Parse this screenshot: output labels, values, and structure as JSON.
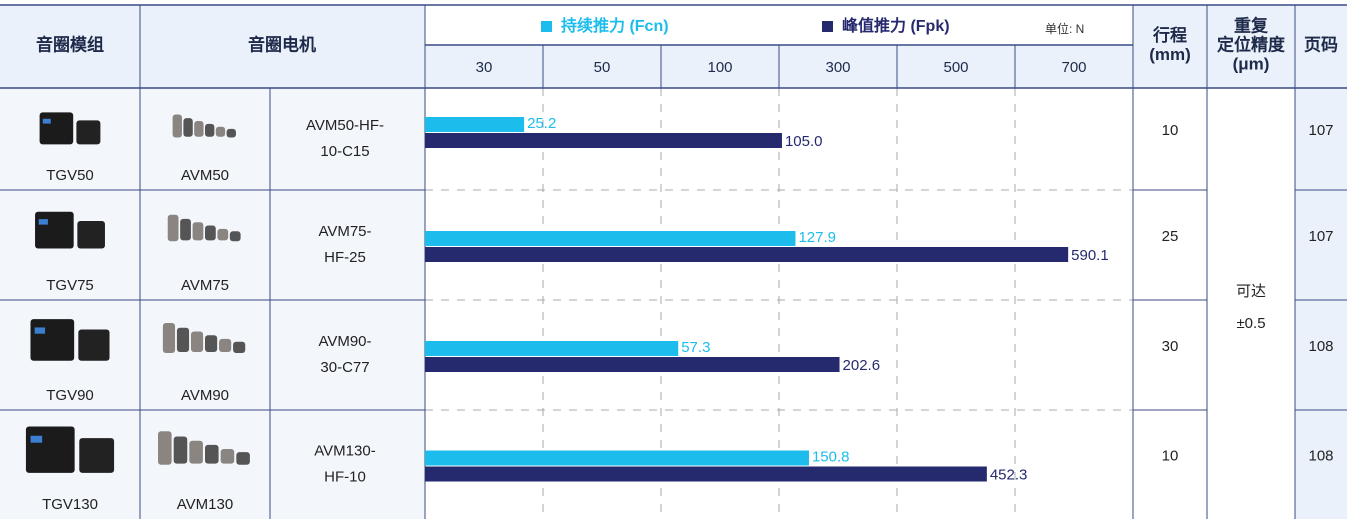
{
  "table": {
    "columns": {
      "module": "音圈模组",
      "motor": "音圈电机",
      "stroke": [
        "行程",
        "(mm)"
      ],
      "precision": [
        "重复",
        "定位精度",
        "(μm)"
      ],
      "page": "页码"
    },
    "rows": [
      {
        "module": "TGV50",
        "motor": "AVM50",
        "model": [
          "AVM50-HF-",
          "10-C15"
        ],
        "stroke": "10",
        "page": "107"
      },
      {
        "module": "TGV75",
        "motor": "AVM75",
        "model": [
          "AVM75-",
          "HF-25"
        ],
        "stroke": "25",
        "page": "107"
      },
      {
        "module": "TGV90",
        "motor": "AVM90",
        "model": [
          "AVM90-",
          "30-C77"
        ],
        "stroke": "30",
        "page": "108"
      },
      {
        "module": "TGV130",
        "motor": "AVM130",
        "model": [
          "AVM130-",
          "HF-10"
        ],
        "stroke": "10",
        "page": "108"
      }
    ],
    "precision_value": [
      "可达",
      "±0.5"
    ]
  },
  "chart_data": {
    "type": "bar",
    "orientation": "horizontal",
    "unit_label": "单位: N",
    "xlim": [
      0,
      700
    ],
    "xticks": [
      30,
      50,
      100,
      300,
      500,
      700
    ],
    "grid": true,
    "series": [
      {
        "name": "持续推力 (Fcn)",
        "color": "#1cbdec",
        "values": [
          25.2,
          127.9,
          57.3,
          150.8
        ]
      },
      {
        "name": "峰值推力 (Fpk)",
        "color": "#252a6f",
        "values": [
          105.0,
          590.1,
          202.6,
          452.3
        ],
        "value_labels": [
          "105.0",
          "590.1",
          "202.6",
          "452.3"
        ]
      }
    ]
  }
}
